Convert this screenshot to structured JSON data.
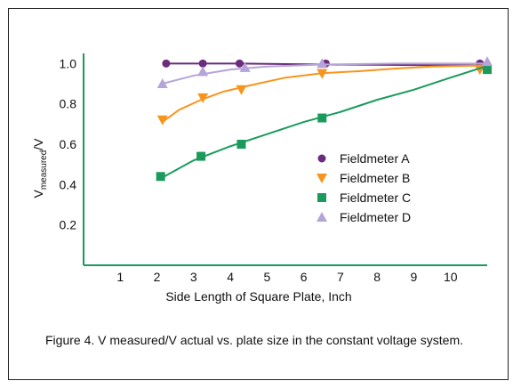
{
  "chart_data": {
    "type": "scatter",
    "title": "",
    "xlabel": "Side Length of Square Plate, Inch",
    "ylabel_main": "V",
    "ylabel_sub": "measured",
    "ylabel_suffix": "/V",
    "xlim": [
      0,
      11
    ],
    "ylim": [
      0,
      1.05
    ],
    "x_ticks": [
      "1",
      "2",
      "3",
      "4",
      "5",
      "6",
      "7",
      "8",
      "9",
      "10"
    ],
    "y_ticks": [
      "0.2",
      "0.4",
      "0.6",
      "0.8",
      "1.0"
    ],
    "grid": false,
    "legend_position": "center-right",
    "series": [
      {
        "name": "Fieldmeter A",
        "marker": "circle",
        "color": "#6b2c7e",
        "x": [
          2.25,
          3.25,
          4.25,
          6.6,
          10.8
        ],
        "y": [
          1.0,
          1.0,
          1.0,
          1.0,
          1.0
        ],
        "fit_x": [
          2.25,
          4.25,
          6.6,
          10.9
        ],
        "fit_y": [
          1.0,
          1.0,
          0.995,
          0.99
        ]
      },
      {
        "name": "Fieldmeter B",
        "marker": "triangle-down",
        "color": "#f7941d",
        "x": [
          2.15,
          3.25,
          4.3,
          6.5,
          10.8
        ],
        "y": [
          0.72,
          0.83,
          0.87,
          0.95,
          0.97
        ],
        "fit_x": [
          2.15,
          2.6,
          3.2,
          3.8,
          4.5,
          5.5,
          6.5,
          7.5,
          8.5,
          9.5,
          10.9
        ],
        "fit_y": [
          0.71,
          0.77,
          0.82,
          0.86,
          0.89,
          0.93,
          0.952,
          0.962,
          0.975,
          0.985,
          0.99
        ]
      },
      {
        "name": "Fieldmeter C",
        "marker": "square",
        "color": "#1a9b5c",
        "x": [
          2.1,
          3.2,
          4.3,
          6.5,
          11.0
        ],
        "y": [
          0.44,
          0.54,
          0.6,
          0.73,
          0.97
        ],
        "fit_x": [
          2.2,
          3.0,
          4.0,
          5.0,
          6.0,
          7.0,
          8.0,
          9.0,
          10.0,
          10.95
        ],
        "fit_y": [
          0.44,
          0.52,
          0.59,
          0.65,
          0.71,
          0.76,
          0.82,
          0.87,
          0.93,
          0.985
        ]
      },
      {
        "name": "Fieldmeter D",
        "marker": "triangle-up",
        "color": "#b5a5d6",
        "x": [
          2.15,
          3.25,
          4.4,
          6.5,
          11.0
        ],
        "y": [
          0.9,
          0.96,
          0.98,
          1.0,
          1.01
        ],
        "fit_x": [
          2.15,
          3.0,
          4.0,
          5.0,
          6.5,
          8.5,
          10.9
        ],
        "fit_y": [
          0.9,
          0.94,
          0.97,
          0.985,
          0.995,
          1.0,
          1.0
        ]
      }
    ]
  },
  "caption": "Figure 4.  V measured/V actual vs. plate size in the constant voltage system."
}
